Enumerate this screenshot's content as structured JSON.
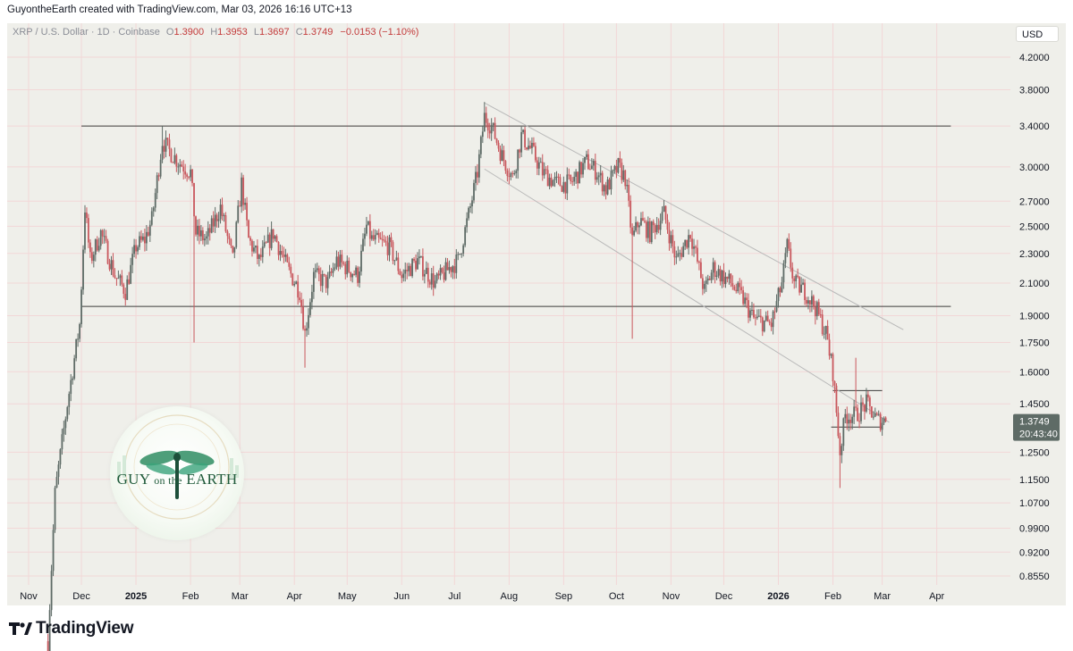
{
  "header": {
    "attribution": "GuyontheEarth created with TradingView.com, Mar 03, 2026 16:16 UTC+13"
  },
  "legend": {
    "symbol": "XRP / U.S. Dollar · 1D · Coinbase",
    "o_key": "O",
    "o_val": "1.3900",
    "h_key": "H",
    "h_val": "1.3953",
    "l_key": "L",
    "l_val": "1.3697",
    "c_key": "C",
    "c_val": "1.3749",
    "change": "−0.0153 (−1.10%)"
  },
  "currency": "USD",
  "brand": {
    "name": "TradingView"
  },
  "watermark": {
    "line1": "GUY",
    "line2": "on the",
    "line3": "EARTH"
  },
  "colors": {
    "up": "#5e6b66",
    "down": "#c9575d",
    "background": "#efefea",
    "grid": "#f2d7d7",
    "line": "#3b3b3b",
    "channel": "#b9b9b9"
  },
  "chart_data": {
    "type": "candlestick",
    "scale": "log",
    "price_labels": [
      "4.2000",
      "3.8000",
      "3.4000",
      "3.0000",
      "2.7000",
      "2.5000",
      "2.3000",
      "2.1000",
      "1.9000",
      "1.7500",
      "1.6000",
      "1.4500",
      "1.2500",
      "1.1500",
      "1.0700",
      "0.9900",
      "0.9200",
      "0.8550"
    ],
    "price_ticks": [
      4.2,
      3.8,
      3.4,
      3.0,
      2.7,
      2.5,
      2.3,
      2.1,
      1.9,
      1.75,
      1.6,
      1.45,
      1.25,
      1.15,
      1.07,
      0.99,
      0.92,
      0.855
    ],
    "x_labels": [
      {
        "label": "Nov",
        "date": "2024-11-01",
        "bold": false
      },
      {
        "label": "Dec",
        "date": "2024-12-01",
        "bold": false
      },
      {
        "label": "2025",
        "date": "2025-01-01",
        "bold": true
      },
      {
        "label": "Feb",
        "date": "2025-02-01",
        "bold": false
      },
      {
        "label": "Mar",
        "date": "2025-03-01",
        "bold": false
      },
      {
        "label": "Apr",
        "date": "2025-04-01",
        "bold": false
      },
      {
        "label": "May",
        "date": "2025-05-01",
        "bold": false
      },
      {
        "label": "Jun",
        "date": "2025-06-01",
        "bold": false
      },
      {
        "label": "Jul",
        "date": "2025-07-01",
        "bold": false
      },
      {
        "label": "Aug",
        "date": "2025-08-01",
        "bold": false
      },
      {
        "label": "Sep",
        "date": "2025-09-01",
        "bold": false
      },
      {
        "label": "Oct",
        "date": "2025-10-01",
        "bold": false
      },
      {
        "label": "Nov",
        "date": "2025-11-01",
        "bold": false
      },
      {
        "label": "Dec",
        "date": "2025-12-01",
        "bold": false
      },
      {
        "label": "2026",
        "date": "2026-01-01",
        "bold": true
      },
      {
        "label": "Feb",
        "date": "2026-02-01",
        "bold": false
      },
      {
        "label": "Mar",
        "date": "2026-03-01",
        "bold": false
      },
      {
        "label": "Apr",
        "date": "2026-04-01",
        "bold": false
      }
    ],
    "current_price": "1.3749",
    "countdown": "20:43:40",
    "anchors": [
      [
        "2024-11-12",
        0.7
      ],
      [
        "2024-11-16",
        1.1
      ],
      [
        "2024-11-23",
        1.45
      ],
      [
        "2024-11-30",
        1.85
      ],
      [
        "2024-12-03",
        2.65
      ],
      [
        "2024-12-06",
        2.25
      ],
      [
        "2024-12-12",
        2.45
      ],
      [
        "2024-12-20",
        2.15
      ],
      [
        "2024-12-26",
        2.05
      ],
      [
        "2025-01-01",
        2.35
      ],
      [
        "2025-01-06",
        2.4
      ],
      [
        "2025-01-10",
        2.55
      ],
      [
        "2025-01-16",
        3.25
      ],
      [
        "2025-01-20",
        3.15
      ],
      [
        "2025-01-25",
        3.05
      ],
      [
        "2025-02-01",
        2.95
      ],
      [
        "2025-02-04",
        2.45
      ],
      [
        "2025-02-10",
        2.4
      ],
      [
        "2025-02-18",
        2.65
      ],
      [
        "2025-02-25",
        2.25
      ],
      [
        "2025-03-02",
        2.85
      ],
      [
        "2025-03-06",
        2.4
      ],
      [
        "2025-03-12",
        2.25
      ],
      [
        "2025-03-20",
        2.45
      ],
      [
        "2025-03-28",
        2.2
      ],
      [
        "2025-04-04",
        2.05
      ],
      [
        "2025-04-07",
        1.8
      ],
      [
        "2025-04-12",
        2.15
      ],
      [
        "2025-04-20",
        2.1
      ],
      [
        "2025-04-25",
        2.25
      ],
      [
        "2025-05-01",
        2.2
      ],
      [
        "2025-05-07",
        2.15
      ],
      [
        "2025-05-12",
        2.5
      ],
      [
        "2025-05-15",
        2.4
      ],
      [
        "2025-05-25",
        2.35
      ],
      [
        "2025-06-01",
        2.15
      ],
      [
        "2025-06-10",
        2.25
      ],
      [
        "2025-06-20",
        2.1
      ],
      [
        "2025-06-28",
        2.2
      ],
      [
        "2025-07-03",
        2.25
      ],
      [
        "2025-07-10",
        2.65
      ],
      [
        "2025-07-14",
        2.95
      ],
      [
        "2025-07-18",
        3.5
      ],
      [
        "2025-07-22",
        3.4
      ],
      [
        "2025-07-28",
        3.1
      ],
      [
        "2025-08-03",
        2.9
      ],
      [
        "2025-08-08",
        3.3
      ],
      [
        "2025-08-14",
        3.15
      ],
      [
        "2025-08-20",
        2.95
      ],
      [
        "2025-08-28",
        2.85
      ],
      [
        "2025-09-05",
        2.85
      ],
      [
        "2025-09-14",
        3.05
      ],
      [
        "2025-09-20",
        2.95
      ],
      [
        "2025-09-25",
        2.8
      ],
      [
        "2025-10-02",
        3.0
      ],
      [
        "2025-10-06",
        2.9
      ],
      [
        "2025-10-10",
        2.4
      ],
      [
        "2025-10-14",
        2.55
      ],
      [
        "2025-10-20",
        2.45
      ],
      [
        "2025-10-28",
        2.6
      ],
      [
        "2025-11-04",
        2.25
      ],
      [
        "2025-11-12",
        2.45
      ],
      [
        "2025-11-20",
        2.05
      ],
      [
        "2025-11-25",
        2.2
      ],
      [
        "2025-12-05",
        2.1
      ],
      [
        "2025-12-12",
        2.0
      ],
      [
        "2025-12-18",
        1.88
      ],
      [
        "2025-12-28",
        1.85
      ],
      [
        "2026-01-03",
        2.1
      ],
      [
        "2026-01-06",
        2.35
      ],
      [
        "2026-01-10",
        2.1
      ],
      [
        "2026-01-16",
        2.05
      ],
      [
        "2026-01-22",
        1.95
      ],
      [
        "2026-01-28",
        1.8
      ],
      [
        "2026-02-01",
        1.6
      ],
      [
        "2026-02-05",
        1.25
      ],
      [
        "2026-02-08",
        1.4
      ],
      [
        "2026-02-14",
        1.4
      ],
      [
        "2026-02-20",
        1.45
      ],
      [
        "2026-02-26",
        1.38
      ],
      [
        "2026-03-03",
        1.3749
      ]
    ],
    "spikes": [
      [
        "2025-04-07",
        "low",
        1.62
      ],
      [
        "2025-02-03",
        "low",
        1.75
      ],
      [
        "2025-10-10",
        "low",
        1.77
      ],
      [
        "2025-01-16",
        "high",
        3.4
      ],
      [
        "2025-07-18",
        "high",
        3.66
      ],
      [
        "2026-02-05",
        "low",
        1.12
      ],
      [
        "2026-02-14",
        "high",
        1.67
      ]
    ],
    "horizontal_lines": [
      {
        "price": 3.4,
        "from": "2024-12-01",
        "to": "2026-04-09"
      },
      {
        "price": 1.955,
        "from": "2024-12-01",
        "to": "2026-04-09"
      },
      {
        "price": 1.51,
        "from": "2026-02-01",
        "to": "2026-03-01"
      },
      {
        "price": 1.35,
        "from": "2026-01-31",
        "to": "2026-03-01"
      }
    ],
    "channel_lines": [
      {
        "from": [
          "2025-07-18",
          3.65
        ],
        "to": [
          "2026-03-13",
          1.82
        ]
      },
      {
        "from": [
          "2025-07-18",
          2.98
        ],
        "to": [
          "2026-03-05",
          1.37
        ]
      }
    ]
  }
}
